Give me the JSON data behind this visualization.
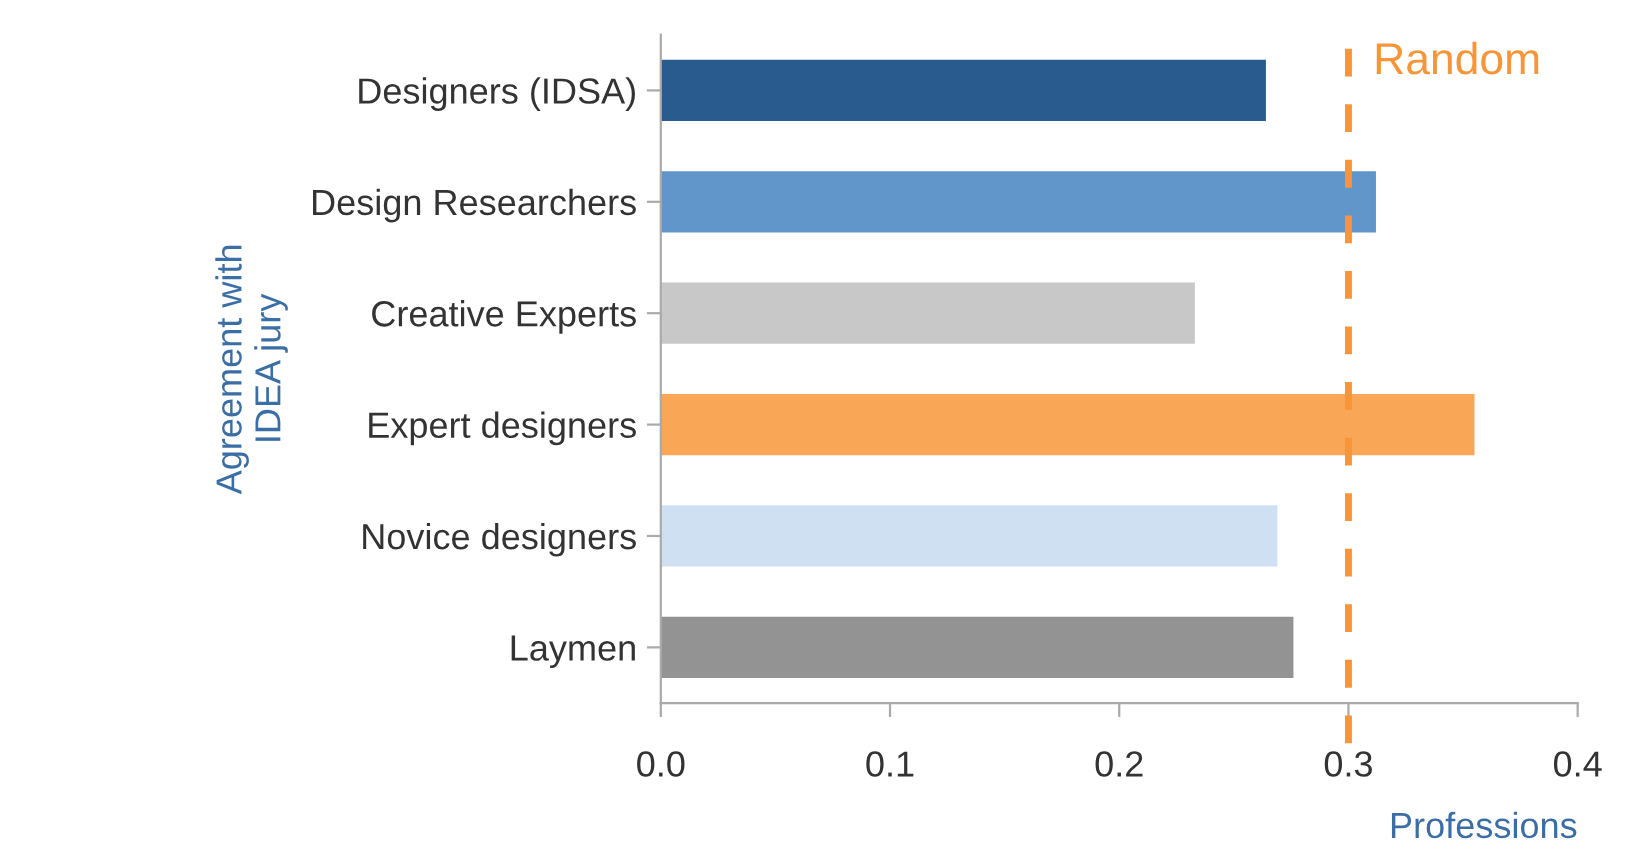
{
  "chart_data": {
    "type": "bar",
    "orientation": "horizontal",
    "categories": [
      "Designers (IDSA)",
      "Design Researchers",
      "Creative Experts",
      "Expert designers",
      "Novice designers",
      "Laymen"
    ],
    "values": [
      0.264,
      0.312,
      0.233,
      0.355,
      0.269,
      0.276
    ],
    "colors": [
      "#2a5b8f",
      "#6096ca",
      "#c8c8c8",
      "#f9a657",
      "#cfe0f2",
      "#939393"
    ],
    "xlim": [
      0,
      0.4
    ],
    "xticks": [
      {
        "value": 0,
        "label": "0.0"
      },
      {
        "value": 0.1,
        "label": "0.1"
      },
      {
        "value": 0.2,
        "label": "0.2"
      },
      {
        "value": 0.3,
        "label": "0.3"
      },
      {
        "value": 0.4,
        "label": "0.4"
      }
    ],
    "xlabel": "Professions",
    "ylabel": "Agreement with\nIDEA jury",
    "ref_lines": [
      {
        "axis": "x",
        "value": 0.3,
        "label": "Random",
        "color": "#f7953a",
        "line_style": "dashed"
      }
    ],
    "grid": false,
    "legend": false
  }
}
